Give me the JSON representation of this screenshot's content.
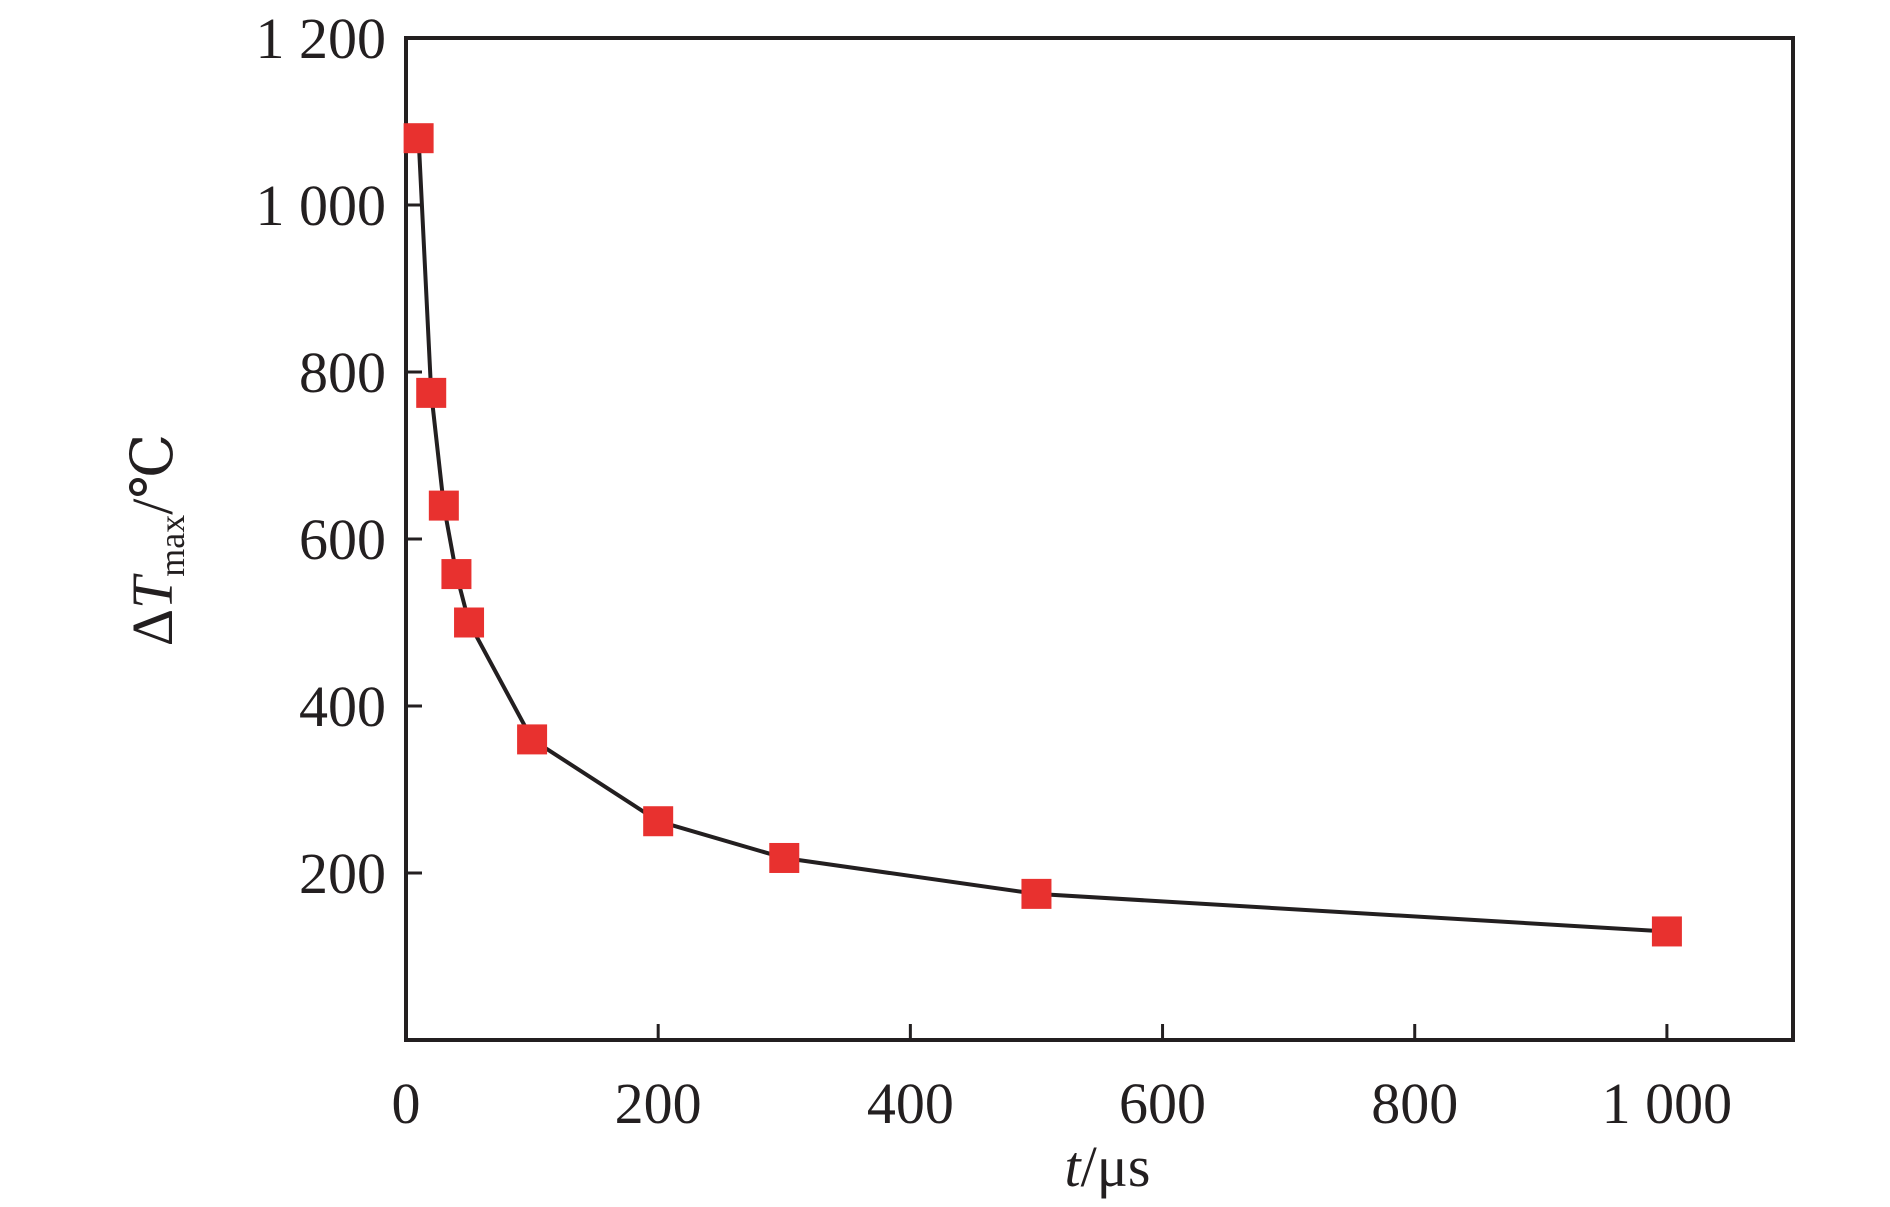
{
  "chart_data": {
    "type": "line",
    "title": "",
    "xlabel": {
      "italic": "t",
      "rest": "/μs"
    },
    "ylabel": {
      "prefix": "Δ",
      "italic": "T",
      "sub": "max",
      "rest": "/℃"
    },
    "xlim": [
      0,
      1100
    ],
    "ylim": [
      0,
      1200
    ],
    "xticks": [
      {
        "value": 0,
        "label": "0"
      },
      {
        "value": 200,
        "label": "200"
      },
      {
        "value": 400,
        "label": "400"
      },
      {
        "value": 600,
        "label": "600"
      },
      {
        "value": 800,
        "label": "800"
      },
      {
        "value": 1000,
        "label": "1 000"
      }
    ],
    "yticks": [
      {
        "value": 200,
        "label": "200"
      },
      {
        "value": 400,
        "label": "400"
      },
      {
        "value": 600,
        "label": "600"
      },
      {
        "value": 800,
        "label": "800"
      },
      {
        "value": 1000,
        "label": "1 000"
      },
      {
        "value": 1200,
        "label": "1 200"
      }
    ],
    "grid": false,
    "series": [
      {
        "x": [
          10,
          20,
          30,
          40,
          50,
          100,
          200,
          300,
          500,
          1000
        ],
        "y": [
          1080,
          775,
          640,
          558,
          500,
          360,
          262,
          218,
          175,
          130
        ],
        "marker": "square",
        "marker_color": "#e8312f",
        "line_color": "#231f20"
      }
    ]
  }
}
